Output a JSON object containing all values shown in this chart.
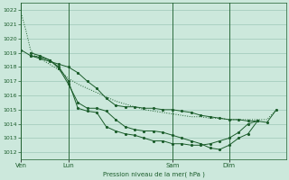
{
  "bg_color": "#cce8dc",
  "grid_color": "#9dc8b8",
  "line_color": "#1a5c2a",
  "xlabel": "Pression niveau de la mer( hPa )",
  "ylim": [
    1011.5,
    1022.5
  ],
  "yticks": [
    1012,
    1013,
    1014,
    1015,
    1016,
    1017,
    1018,
    1019,
    1020,
    1021,
    1022
  ],
  "xtick_labels": [
    "Ven",
    "Lun",
    "Sam",
    "Dim"
  ],
  "xtick_positions": [
    0,
    10,
    32,
    44
  ],
  "vlines": [
    0,
    10,
    32,
    44
  ],
  "xlim": [
    0,
    56
  ],
  "series1_x": [
    0,
    1,
    2,
    3,
    4,
    5,
    6,
    7,
    8,
    9,
    10,
    12,
    14,
    16,
    18,
    20,
    22,
    24,
    26,
    28,
    30,
    32,
    34,
    36,
    38,
    40,
    42,
    44,
    46,
    48,
    50,
    52,
    54
  ],
  "series1_y": [
    1021.8,
    1020.6,
    1019.2,
    1018.8,
    1018.6,
    1018.4,
    1018.2,
    1018.0,
    1017.8,
    1017.5,
    1017.2,
    1016.8,
    1016.5,
    1016.2,
    1015.9,
    1015.6,
    1015.4,
    1015.2,
    1015.0,
    1014.9,
    1014.8,
    1014.7,
    1014.6,
    1014.5,
    1014.5,
    1014.4,
    1014.4,
    1014.3,
    1014.3,
    1014.3,
    1014.3,
    1014.3,
    1015.0
  ],
  "series2_x": [
    0,
    2,
    4,
    6,
    8,
    10,
    12,
    14,
    16,
    18,
    20,
    22,
    24,
    26,
    28,
    30,
    32,
    34,
    36,
    38,
    40,
    42,
    44,
    46,
    48,
    50,
    52,
    54
  ],
  "series2_y": [
    1019.2,
    1018.8,
    1018.6,
    1018.4,
    1018.2,
    1018.0,
    1017.6,
    1017.0,
    1016.5,
    1015.8,
    1015.3,
    1015.2,
    1015.2,
    1015.1,
    1015.1,
    1015.0,
    1015.0,
    1014.9,
    1014.8,
    1014.6,
    1014.5,
    1014.4,
    1014.3,
    1014.3,
    1014.2,
    1014.2,
    1014.1,
    1015.0
  ],
  "series3_x": [
    2,
    4,
    6,
    8,
    10,
    12,
    14,
    16,
    18,
    20,
    22,
    24,
    26,
    28,
    30,
    32,
    34,
    36,
    38,
    40,
    42,
    44,
    46,
    48,
    50
  ],
  "series3_y": [
    1018.8,
    1018.7,
    1018.5,
    1017.9,
    1016.8,
    1015.5,
    1015.1,
    1015.1,
    1014.9,
    1014.3,
    1013.8,
    1013.6,
    1013.5,
    1013.5,
    1013.4,
    1013.2,
    1013.0,
    1012.8,
    1012.6,
    1012.3,
    1012.2,
    1012.5,
    1013.0,
    1013.3,
    1014.2
  ],
  "series4_x": [
    2,
    4,
    6,
    8,
    10,
    12,
    14,
    16,
    18,
    20,
    22,
    24,
    26,
    28,
    30,
    32,
    34,
    36,
    38,
    40,
    42,
    44,
    46,
    48,
    50
  ],
  "series4_y": [
    1019.0,
    1018.8,
    1018.5,
    1018.0,
    1017.0,
    1015.1,
    1014.9,
    1014.8,
    1013.8,
    1013.5,
    1013.3,
    1013.2,
    1013.0,
    1012.8,
    1012.8,
    1012.6,
    1012.6,
    1012.5,
    1012.5,
    1012.6,
    1012.8,
    1013.0,
    1013.4,
    1014.0,
    1014.2
  ]
}
